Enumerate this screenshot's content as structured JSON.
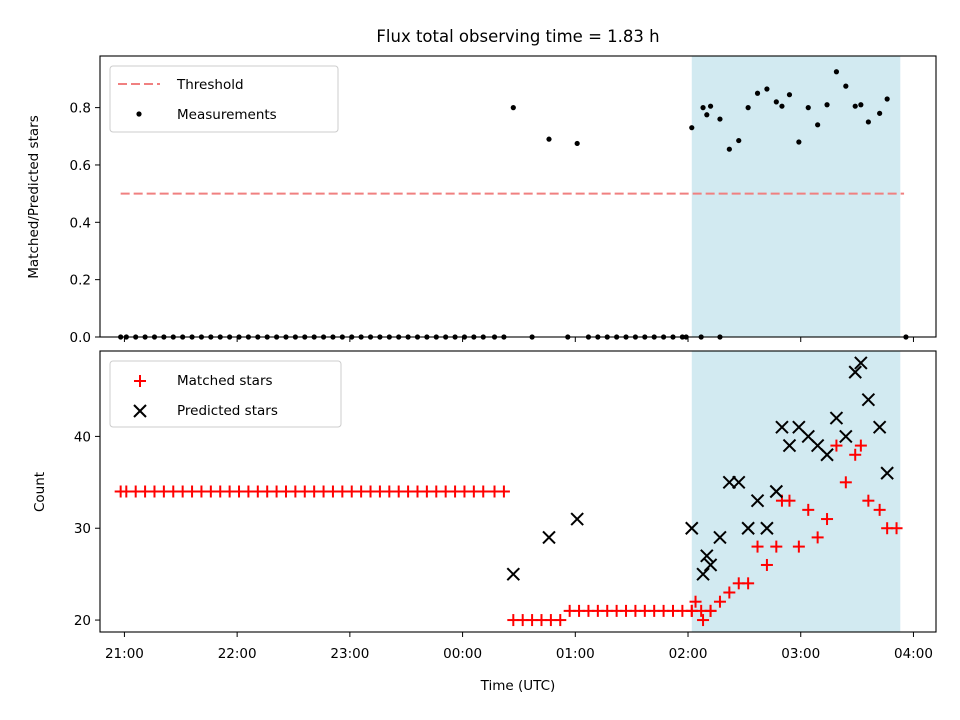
{
  "chart_data": [
    {
      "type": "scatter",
      "title": "Flux total observing time = 1.83 h",
      "xlabel": "",
      "ylabel": "Matched/Predicted stars",
      "xlim": [
        "20:47",
        "04:12"
      ],
      "ylim": [
        0,
        0.98
      ],
      "yticks": [
        "0.0",
        "0.2",
        "0.4",
        "0.6",
        "0.8"
      ],
      "ytick_values": [
        0,
        0.2,
        0.4,
        0.6,
        0.8
      ],
      "legend": {
        "position": "top-left",
        "entries": [
          "Threshold",
          "Measurements"
        ]
      },
      "shaded_interval": {
        "start": "02:02",
        "end": "03:53",
        "color": "#add8e6"
      },
      "threshold": {
        "name": "Threshold",
        "y": 0.5,
        "x_start": "20:58",
        "x_end": "03:55",
        "color": "#f08080",
        "style": "dashed"
      },
      "series": [
        {
          "name": "Measurements",
          "color": "#000000",
          "points": [
            [
              "20:58",
              0
            ],
            [
              "21:01",
              0
            ],
            [
              "21:06",
              0
            ],
            [
              "21:11",
              0
            ],
            [
              "21:16",
              0
            ],
            [
              "21:21",
              0
            ],
            [
              "21:26",
              0
            ],
            [
              "21:31",
              0
            ],
            [
              "21:36",
              0
            ],
            [
              "21:41",
              0
            ],
            [
              "21:46",
              0
            ],
            [
              "21:51",
              0
            ],
            [
              "21:56",
              0
            ],
            [
              "22:01",
              0
            ],
            [
              "22:06",
              0
            ],
            [
              "22:11",
              0
            ],
            [
              "22:16",
              0
            ],
            [
              "22:21",
              0
            ],
            [
              "22:26",
              0
            ],
            [
              "22:31",
              0
            ],
            [
              "22:36",
              0
            ],
            [
              "22:41",
              0
            ],
            [
              "22:46",
              0
            ],
            [
              "22:51",
              0
            ],
            [
              "22:56",
              0
            ],
            [
              "23:01",
              0
            ],
            [
              "23:06",
              0
            ],
            [
              "23:11",
              0
            ],
            [
              "23:16",
              0
            ],
            [
              "23:21",
              0
            ],
            [
              "23:26",
              0
            ],
            [
              "23:31",
              0
            ],
            [
              "23:36",
              0
            ],
            [
              "23:41",
              0
            ],
            [
              "23:46",
              0
            ],
            [
              "23:51",
              0
            ],
            [
              "23:56",
              0
            ],
            [
              "00:01",
              0
            ],
            [
              "00:06",
              0
            ],
            [
              "00:11",
              0
            ],
            [
              "00:17",
              0
            ],
            [
              "00:22",
              0
            ],
            [
              "00:27",
              0.8
            ],
            [
              "00:37",
              0
            ],
            [
              "00:46",
              0.69
            ],
            [
              "00:56",
              0
            ],
            [
              "01:01",
              0.675
            ],
            [
              "01:07",
              0
            ],
            [
              "01:12",
              0
            ],
            [
              "01:17",
              0
            ],
            [
              "01:22",
              0
            ],
            [
              "01:27",
              0
            ],
            [
              "01:32",
              0
            ],
            [
              "01:37",
              0
            ],
            [
              "01:42",
              0
            ],
            [
              "01:47",
              0
            ],
            [
              "01:52",
              0
            ],
            [
              "01:57",
              0
            ],
            [
              "01:59",
              0
            ],
            [
              "02:07",
              0
            ],
            [
              "02:10",
              0.775
            ],
            [
              "02:17",
              0
            ],
            [
              "02:02",
              0.73
            ],
            [
              "02:08",
              0.8
            ],
            [
              "02:12",
              0.805
            ],
            [
              "02:17",
              0.76
            ],
            [
              "02:22",
              0.655
            ],
            [
              "02:27",
              0.685
            ],
            [
              "02:32",
              0.8
            ],
            [
              "02:37",
              0.85
            ],
            [
              "02:42",
              0.865
            ],
            [
              "02:47",
              0.82
            ],
            [
              "02:50",
              0.805
            ],
            [
              "02:54",
              0.845
            ],
            [
              "02:59",
              0.68
            ],
            [
              "03:04",
              0.8
            ],
            [
              "03:09",
              0.74
            ],
            [
              "03:14",
              0.81
            ],
            [
              "03:19",
              0.925
            ],
            [
              "03:24",
              0.875
            ],
            [
              "03:29",
              0.805
            ],
            [
              "03:32",
              0.81
            ],
            [
              "03:36",
              0.75
            ],
            [
              "03:42",
              0.78
            ],
            [
              "03:46",
              0.83
            ],
            [
              "03:56",
              0
            ]
          ]
        }
      ]
    },
    {
      "type": "scatter",
      "title": "",
      "xlabel": "Time (UTC)",
      "ylabel": "Count",
      "xlim": [
        "20:47",
        "04:12"
      ],
      "ylim": [
        18.7,
        49.3
      ],
      "yticks": [
        "20",
        "30",
        "40"
      ],
      "ytick_values": [
        20,
        30,
        40
      ],
      "xticks": [
        "21:00",
        "22:00",
        "23:00",
        "00:00",
        "01:00",
        "02:00",
        "03:00",
        "04:00"
      ],
      "legend": {
        "position": "top-left",
        "entries": [
          "Matched stars",
          "Predicted stars"
        ]
      },
      "shaded_interval": {
        "start": "02:02",
        "end": "03:53",
        "color": "#add8e6"
      },
      "series": [
        {
          "name": "Matched stars",
          "color": "#ff0000",
          "marker": "plus",
          "points": [
            [
              "20:58",
              34
            ],
            [
              "21:01",
              34
            ],
            [
              "21:06",
              34
            ],
            [
              "21:11",
              34
            ],
            [
              "21:16",
              34
            ],
            [
              "21:21",
              34
            ],
            [
              "21:26",
              34
            ],
            [
              "21:31",
              34
            ],
            [
              "21:36",
              34
            ],
            [
              "21:41",
              34
            ],
            [
              "21:46",
              34
            ],
            [
              "21:51",
              34
            ],
            [
              "21:56",
              34
            ],
            [
              "22:01",
              34
            ],
            [
              "22:06",
              34
            ],
            [
              "22:11",
              34
            ],
            [
              "22:16",
              34
            ],
            [
              "22:21",
              34
            ],
            [
              "22:26",
              34
            ],
            [
              "22:31",
              34
            ],
            [
              "22:36",
              34
            ],
            [
              "22:41",
              34
            ],
            [
              "22:46",
              34
            ],
            [
              "22:51",
              34
            ],
            [
              "22:56",
              34
            ],
            [
              "23:01",
              34
            ],
            [
              "23:06",
              34
            ],
            [
              "23:11",
              34
            ],
            [
              "23:16",
              34
            ],
            [
              "23:21",
              34
            ],
            [
              "23:26",
              34
            ],
            [
              "23:31",
              34
            ],
            [
              "23:36",
              34
            ],
            [
              "23:41",
              34
            ],
            [
              "23:46",
              34
            ],
            [
              "23:51",
              34
            ],
            [
              "23:56",
              34
            ],
            [
              "00:01",
              34
            ],
            [
              "00:06",
              34
            ],
            [
              "00:11",
              34
            ],
            [
              "00:17",
              34
            ],
            [
              "00:22",
              34
            ],
            [
              "00:27",
              20
            ],
            [
              "00:32",
              20
            ],
            [
              "00:37",
              20
            ],
            [
              "00:42",
              20
            ],
            [
              "00:47",
              20
            ],
            [
              "00:52",
              20
            ],
            [
              "00:57",
              21
            ],
            [
              "01:02",
              21
            ],
            [
              "01:07",
              21
            ],
            [
              "01:12",
              21
            ],
            [
              "01:17",
              21
            ],
            [
              "01:22",
              21
            ],
            [
              "01:27",
              21
            ],
            [
              "01:32",
              21
            ],
            [
              "01:37",
              21
            ],
            [
              "01:42",
              21
            ],
            [
              "01:47",
              21
            ],
            [
              "01:52",
              21
            ],
            [
              "01:57",
              21
            ],
            [
              "02:02",
              21
            ],
            [
              "02:07",
              21
            ],
            [
              "02:12",
              21
            ],
            [
              "02:02",
              21
            ],
            [
              "02:04",
              22
            ],
            [
              "02:08",
              20
            ],
            [
              "02:12",
              21
            ],
            [
              "02:17",
              22
            ],
            [
              "02:22",
              23
            ],
            [
              "02:27",
              24
            ],
            [
              "02:32",
              24
            ],
            [
              "02:37",
              28
            ],
            [
              "02:42",
              26
            ],
            [
              "02:47",
              28
            ],
            [
              "02:50",
              33
            ],
            [
              "02:54",
              33
            ],
            [
              "02:59",
              28
            ],
            [
              "03:04",
              32
            ],
            [
              "03:09",
              29
            ],
            [
              "03:14",
              31
            ],
            [
              "03:19",
              39
            ],
            [
              "03:24",
              35
            ],
            [
              "03:29",
              38
            ],
            [
              "03:32",
              39
            ],
            [
              "03:36",
              33
            ],
            [
              "03:42",
              32
            ],
            [
              "03:46",
              30
            ],
            [
              "03:51",
              30
            ]
          ]
        },
        {
          "name": "Predicted stars",
          "color": "#000000",
          "marker": "x",
          "points": [
            [
              "00:27",
              25
            ],
            [
              "00:46",
              29
            ],
            [
              "01:01",
              31
            ],
            [
              "02:10",
              27
            ],
            [
              "02:02",
              30
            ],
            [
              "02:08",
              25
            ],
            [
              "02:12",
              26
            ],
            [
              "02:17",
              29
            ],
            [
              "02:22",
              35
            ],
            [
              "02:27",
              35
            ],
            [
              "02:32",
              30
            ],
            [
              "02:37",
              33
            ],
            [
              "02:42",
              30
            ],
            [
              "02:47",
              34
            ],
            [
              "02:50",
              41
            ],
            [
              "02:54",
              39
            ],
            [
              "02:59",
              41
            ],
            [
              "03:04",
              40
            ],
            [
              "03:09",
              39
            ],
            [
              "03:14",
              38
            ],
            [
              "03:19",
              42
            ],
            [
              "03:24",
              40
            ],
            [
              "03:29",
              47
            ],
            [
              "03:32",
              48
            ],
            [
              "03:36",
              44
            ],
            [
              "03:42",
              41
            ],
            [
              "03:46",
              36
            ]
          ]
        }
      ]
    }
  ]
}
